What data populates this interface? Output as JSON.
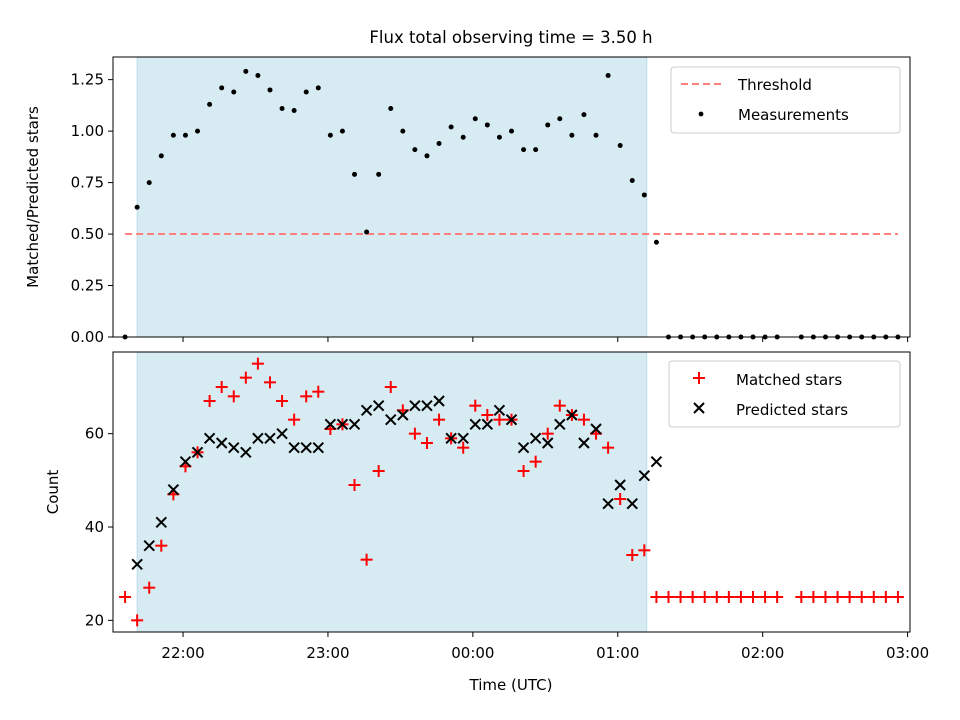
{
  "chart_data": [
    {
      "type": "scatter",
      "title": "Flux total observing time = 3.50 h",
      "xlabel": "",
      "ylabel": "Matched/Predicted stars",
      "xlim": [
        "21:31",
        "03:01"
      ],
      "ylim": [
        0,
        1.36
      ],
      "x_tick_labels": [],
      "y_ticks": [
        0.0,
        0.25,
        0.5,
        0.75,
        1.0,
        1.25
      ],
      "y_tick_labels": [
        "0.00",
        "0.25",
        "0.50",
        "0.75",
        "1.00",
        "1.25",
        ""
      ],
      "shaded_interval": [
        "21:41",
        "01:12"
      ],
      "threshold": {
        "name": "Threshold",
        "value": 0.5,
        "x_start": "21:36",
        "x_end": "02:56",
        "color": "#ff7f7f"
      },
      "legend_position": "top-right",
      "series": [
        {
          "name": "Measurements",
          "marker": "dot",
          "color": "#000000",
          "x": [
            "21:36",
            "21:41",
            "21:46",
            "21:51",
            "21:56",
            "22:01",
            "22:06",
            "22:11",
            "22:16",
            "22:21",
            "22:26",
            "22:31",
            "22:36",
            "22:41",
            "22:46",
            "22:51",
            "22:56",
            "23:01",
            "23:06",
            "23:11",
            "23:16",
            "23:21",
            "23:26",
            "23:31",
            "23:36",
            "23:41",
            "23:46",
            "23:51",
            "23:56",
            "00:01",
            "00:06",
            "00:11",
            "00:16",
            "00:21",
            "00:26",
            "00:31",
            "00:36",
            "00:41",
            "00:46",
            "00:51",
            "00:56",
            "01:01",
            "01:06",
            "01:11",
            "01:16",
            "01:21",
            "01:26",
            "01:31",
            "01:36",
            "01:41",
            "01:46",
            "01:51",
            "01:56",
            "02:01",
            "02:06",
            "02:16",
            "02:21",
            "02:26",
            "02:31",
            "02:36",
            "02:41",
            "02:46",
            "02:51",
            "02:56"
          ],
          "y": [
            0.0,
            0.63,
            0.75,
            0.88,
            0.98,
            0.98,
            1.0,
            1.13,
            1.21,
            1.19,
            1.29,
            1.27,
            1.2,
            1.11,
            1.1,
            1.19,
            1.21,
            0.98,
            1.0,
            0.79,
            0.51,
            0.79,
            1.11,
            1.0,
            0.91,
            0.88,
            0.94,
            1.02,
            0.97,
            1.06,
            1.03,
            0.97,
            1.0,
            0.91,
            0.91,
            1.03,
            1.06,
            0.98,
            1.08,
            0.98,
            1.27,
            0.93,
            0.76,
            0.69,
            0.46,
            0,
            0,
            0,
            0,
            0,
            0,
            0,
            0,
            0,
            0,
            0,
            0,
            0,
            0,
            0,
            0,
            0,
            0,
            0
          ]
        }
      ]
    },
    {
      "type": "scatter",
      "title": "",
      "xlabel": "Time (UTC)",
      "ylabel": "Count",
      "xlim": [
        "21:31",
        "03:01"
      ],
      "ylim": [
        17.5,
        77.5
      ],
      "x_ticks": [
        "22:00",
        "23:00",
        "00:00",
        "01:00",
        "02:00",
        "03:00"
      ],
      "x_tick_labels": [
        "22:00",
        "23:00",
        "00:00",
        "01:00",
        "02:00",
        "03:00"
      ],
      "y_ticks": [
        20,
        40,
        60
      ],
      "y_tick_labels": [
        "20",
        "40",
        "60"
      ],
      "shaded_interval": [
        "21:41",
        "01:12"
      ],
      "legend_position": "top-right",
      "series": [
        {
          "name": "Matched stars",
          "marker": "plus",
          "color": "#ff0000",
          "x": [
            "21:36",
            "21:41",
            "21:46",
            "21:51",
            "21:56",
            "22:01",
            "22:06",
            "22:11",
            "22:16",
            "22:21",
            "22:26",
            "22:31",
            "22:36",
            "22:41",
            "22:46",
            "22:51",
            "22:56",
            "23:01",
            "23:06",
            "23:11",
            "23:16",
            "23:21",
            "23:26",
            "23:31",
            "23:36",
            "23:41",
            "23:46",
            "23:51",
            "23:56",
            "00:01",
            "00:06",
            "00:11",
            "00:16",
            "00:21",
            "00:26",
            "00:31",
            "00:36",
            "00:41",
            "00:46",
            "00:51",
            "00:56",
            "01:01",
            "01:06",
            "01:11",
            "01:16",
            "01:21",
            "01:26",
            "01:31",
            "01:36",
            "01:41",
            "01:46",
            "01:51",
            "01:56",
            "02:01",
            "02:06",
            "02:16",
            "02:21",
            "02:26",
            "02:31",
            "02:36",
            "02:41",
            "02:46",
            "02:51",
            "02:56"
          ],
          "y": [
            25,
            20,
            27,
            36,
            47,
            53,
            56,
            67,
            70,
            68,
            72,
            75,
            71,
            67,
            63,
            68,
            69,
            61,
            62,
            49,
            33,
            52,
            70,
            65,
            60,
            58,
            63,
            59,
            57,
            66,
            64,
            63,
            63,
            52,
            54,
            60,
            66,
            64,
            63,
            60,
            57,
            46,
            34,
            35,
            25,
            25,
            25,
            25,
            25,
            25,
            25,
            25,
            25,
            25,
            25,
            25,
            25,
            25,
            25,
            25,
            25,
            25,
            25,
            25
          ]
        },
        {
          "name": "Predicted stars",
          "marker": "x",
          "color": "#000000",
          "x": [
            "21:41",
            "21:46",
            "21:51",
            "21:56",
            "22:01",
            "22:06",
            "22:11",
            "22:16",
            "22:21",
            "22:26",
            "22:31",
            "22:36",
            "22:41",
            "22:46",
            "22:51",
            "22:56",
            "23:01",
            "23:06",
            "23:11",
            "23:16",
            "23:21",
            "23:26",
            "23:31",
            "23:36",
            "23:41",
            "23:46",
            "23:51",
            "23:56",
            "00:01",
            "00:06",
            "00:11",
            "00:16",
            "00:21",
            "00:26",
            "00:31",
            "00:36",
            "00:41",
            "00:46",
            "00:51",
            "00:56",
            "01:01",
            "01:06",
            "01:11",
            "01:16"
          ],
          "y": [
            32,
            36,
            41,
            48,
            54,
            56,
            59,
            58,
            57,
            56,
            59,
            59,
            60,
            57,
            57,
            57,
            62,
            62,
            62,
            65,
            66,
            63,
            64,
            66,
            66,
            67,
            59,
            59,
            62,
            62,
            65,
            63,
            57,
            59,
            58,
            62,
            64,
            58,
            61,
            45,
            49,
            45,
            51,
            54
          ]
        }
      ]
    }
  ]
}
